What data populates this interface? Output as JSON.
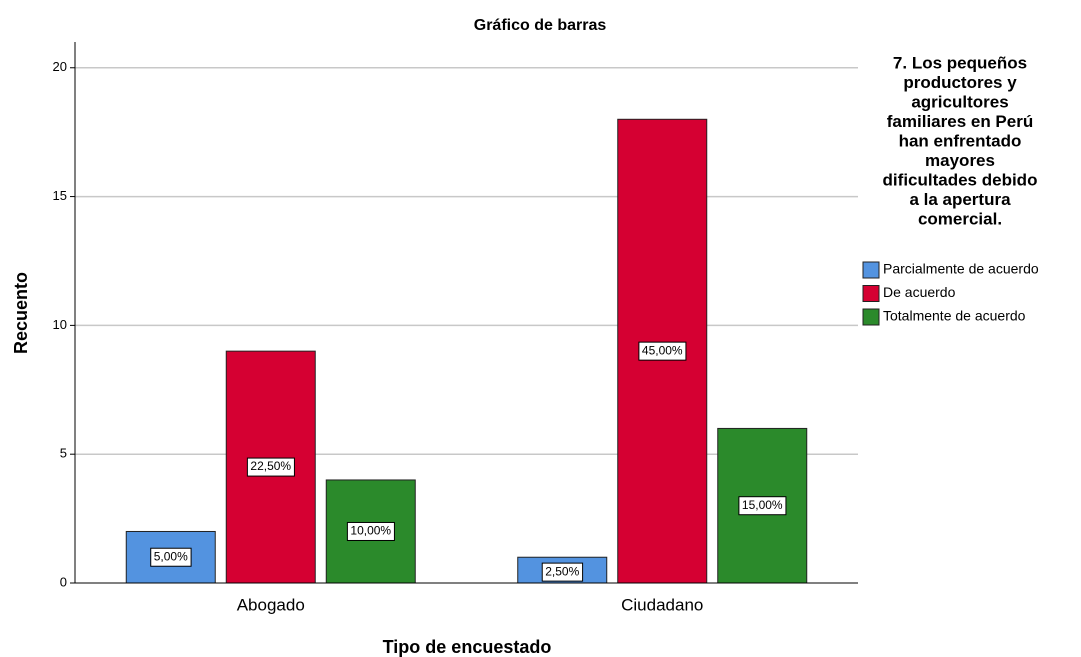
{
  "chart_data": {
    "type": "bar",
    "title": "Gráfico de barras",
    "x_label": "Tipo de encuestado",
    "y_label": "Recuento",
    "categories": [
      "Abogado",
      "Ciudadano"
    ],
    "series": [
      {
        "name": "Parcialmente de acuerdo",
        "color": "#5393e0",
        "values": [
          2,
          1
        ],
        "percent_labels": [
          "5,00%",
          "2,50%"
        ]
      },
      {
        "name": "De acuerdo",
        "color": "#d50032",
        "values": [
          9,
          18
        ],
        "percent_labels": [
          "22,50%",
          "45,00%"
        ]
      },
      {
        "name": "Totalmente de acuerdo",
        "color": "#2b8a2b",
        "values": [
          4,
          6
        ],
        "percent_labels": [
          "10,00%",
          "15,00%"
        ]
      }
    ],
    "legend_title": [
      "7. Los pequeños",
      "productores y",
      "agricultores",
      "familiares en Perú",
      "han enfrentado",
      "mayores",
      "dificultades debido",
      "a la apertura",
      "comercial."
    ],
    "legend_position": "right",
    "ylim": [
      0,
      21
    ],
    "yticks": [
      0,
      5,
      10,
      15,
      20
    ],
    "grid": true
  }
}
